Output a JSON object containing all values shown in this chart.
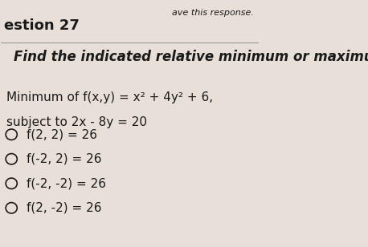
{
  "background_color": "#e8e0d8",
  "top_right_text": "ave this response.",
  "question_label": "estion 27",
  "section_title": "Find the indicated relative minimum or maximum.",
  "problem_line1": "Minimum of f(x,y) = x² + 4y² + 6,",
  "problem_line2": "subject to 2x - 8y = 20",
  "choices": [
    "f(2, 2) = 26",
    "f(-2, 2) = 26",
    "f(-2, -2) = 26",
    "f(2, -2) = 26"
  ],
  "text_color": "#1a1a1a",
  "circle_color": "#1a1a1a",
  "title_color": "#1a1a1a",
  "question_label_fontsize": 13,
  "section_title_fontsize": 12,
  "problem_fontsize": 11,
  "choice_fontsize": 11
}
